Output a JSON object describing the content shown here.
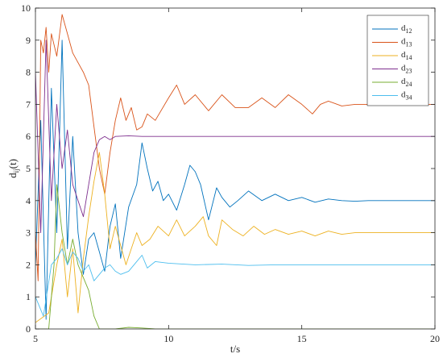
{
  "chart_data": {
    "type": "line",
    "title": "",
    "xlabel": "t/s",
    "ylabel": {
      "main": "d",
      "sub": "ij",
      "suffix": "(t)"
    },
    "xlim": [
      5,
      20
    ],
    "ylim": [
      0,
      10
    ],
    "xticks": [
      "5",
      "10",
      "15",
      "20"
    ],
    "yticks": [
      "0",
      "1",
      "2",
      "3",
      "4",
      "5",
      "6",
      "7",
      "8",
      "9",
      "10"
    ],
    "grid": false,
    "legend_position": "top-right",
    "series": [
      {
        "name": "d",
        "sub": "12",
        "color": "#0072BD",
        "points": [
          [
            5.0,
            2.0
          ],
          [
            5.2,
            6.5
          ],
          [
            5.4,
            0.3
          ],
          [
            5.6,
            7.5
          ],
          [
            5.8,
            3.0
          ],
          [
            6.0,
            9.0
          ],
          [
            6.2,
            2.5
          ],
          [
            6.4,
            6.0
          ],
          [
            6.6,
            3.0
          ],
          [
            6.8,
            1.7
          ],
          [
            7.0,
            2.8
          ],
          [
            7.2,
            3.0
          ],
          [
            7.4,
            2.4
          ],
          [
            7.6,
            1.8
          ],
          [
            7.8,
            3.2
          ],
          [
            8.0,
            3.9
          ],
          [
            8.2,
            2.2
          ],
          [
            8.5,
            3.8
          ],
          [
            8.8,
            4.5
          ],
          [
            9.0,
            5.8
          ],
          [
            9.2,
            5.0
          ],
          [
            9.4,
            4.3
          ],
          [
            9.6,
            4.6
          ],
          [
            9.8,
            4.0
          ],
          [
            10.0,
            4.2
          ],
          [
            10.3,
            3.7
          ],
          [
            10.6,
            4.5
          ],
          [
            10.8,
            5.1
          ],
          [
            11.0,
            4.9
          ],
          [
            11.2,
            4.5
          ],
          [
            11.5,
            3.4
          ],
          [
            11.8,
            4.4
          ],
          [
            12.0,
            4.1
          ],
          [
            12.3,
            3.8
          ],
          [
            12.6,
            4.0
          ],
          [
            13.0,
            4.3
          ],
          [
            13.5,
            4.0
          ],
          [
            14.0,
            4.2
          ],
          [
            14.5,
            4.0
          ],
          [
            15.0,
            4.1
          ],
          [
            15.5,
            3.95
          ],
          [
            16.0,
            4.05
          ],
          [
            16.5,
            4.0
          ],
          [
            17.0,
            3.98
          ],
          [
            17.5,
            4.0
          ],
          [
            18.0,
            4.0
          ],
          [
            19.0,
            4.0
          ],
          [
            20.0,
            4.0
          ]
        ]
      },
      {
        "name": "d",
        "sub": "13",
        "color": "#D95319",
        "points": [
          [
            5.0,
            3.0
          ],
          [
            5.1,
            1.5
          ],
          [
            5.2,
            9.0
          ],
          [
            5.3,
            8.6
          ],
          [
            5.4,
            9.4
          ],
          [
            5.5,
            8.0
          ],
          [
            5.6,
            9.2
          ],
          [
            5.8,
            8.5
          ],
          [
            6.0,
            9.8
          ],
          [
            6.2,
            9.2
          ],
          [
            6.4,
            8.6
          ],
          [
            6.6,
            8.3
          ],
          [
            6.8,
            8.0
          ],
          [
            7.0,
            7.6
          ],
          [
            7.2,
            6.3
          ],
          [
            7.4,
            5.0
          ],
          [
            7.6,
            4.2
          ],
          [
            7.8,
            5.5
          ],
          [
            8.0,
            6.5
          ],
          [
            8.2,
            7.2
          ],
          [
            8.4,
            6.5
          ],
          [
            8.6,
            6.9
          ],
          [
            8.8,
            6.2
          ],
          [
            9.0,
            6.3
          ],
          [
            9.2,
            6.7
          ],
          [
            9.5,
            6.5
          ],
          [
            10.0,
            7.2
          ],
          [
            10.3,
            7.6
          ],
          [
            10.6,
            7.0
          ],
          [
            11.0,
            7.3
          ],
          [
            11.5,
            6.8
          ],
          [
            12.0,
            7.3
          ],
          [
            12.5,
            6.9
          ],
          [
            13.0,
            6.9
          ],
          [
            13.5,
            7.2
          ],
          [
            14.0,
            6.9
          ],
          [
            14.5,
            7.3
          ],
          [
            15.0,
            7.0
          ],
          [
            15.4,
            6.7
          ],
          [
            15.7,
            7.0
          ],
          [
            16.0,
            7.1
          ],
          [
            16.5,
            6.95
          ],
          [
            17.0,
            7.0
          ],
          [
            17.5,
            7.0
          ],
          [
            18.0,
            7.0
          ],
          [
            19.0,
            7.0
          ],
          [
            20.0,
            7.0
          ]
        ]
      },
      {
        "name": "d",
        "sub": "14",
        "color": "#EDB120",
        "points": [
          [
            5.0,
            0.2
          ],
          [
            5.5,
            0.5
          ],
          [
            5.8,
            2.0
          ],
          [
            6.0,
            2.8
          ],
          [
            6.2,
            1.0
          ],
          [
            6.4,
            2.5
          ],
          [
            6.6,
            0.5
          ],
          [
            6.8,
            2.2
          ],
          [
            7.0,
            3.5
          ],
          [
            7.2,
            4.6
          ],
          [
            7.4,
            5.5
          ],
          [
            7.6,
            4.2
          ],
          [
            7.8,
            2.5
          ],
          [
            8.0,
            3.2
          ],
          [
            8.2,
            2.6
          ],
          [
            8.4,
            2.0
          ],
          [
            8.6,
            2.5
          ],
          [
            8.8,
            3.0
          ],
          [
            9.0,
            2.6
          ],
          [
            9.3,
            2.8
          ],
          [
            9.6,
            3.2
          ],
          [
            10.0,
            2.9
          ],
          [
            10.3,
            3.4
          ],
          [
            10.6,
            2.9
          ],
          [
            11.0,
            3.2
          ],
          [
            11.3,
            3.5
          ],
          [
            11.5,
            2.9
          ],
          [
            11.8,
            2.6
          ],
          [
            12.0,
            3.4
          ],
          [
            12.4,
            3.1
          ],
          [
            12.8,
            2.9
          ],
          [
            13.2,
            3.2
          ],
          [
            13.6,
            2.95
          ],
          [
            14.0,
            3.1
          ],
          [
            14.5,
            2.95
          ],
          [
            15.0,
            3.05
          ],
          [
            15.5,
            2.9
          ],
          [
            16.0,
            3.05
          ],
          [
            16.5,
            2.95
          ],
          [
            17.0,
            3.0
          ],
          [
            17.5,
            3.0
          ],
          [
            18.0,
            3.0
          ],
          [
            19.0,
            3.0
          ],
          [
            20.0,
            3.0
          ]
        ]
      },
      {
        "name": "d",
        "sub": "23",
        "color": "#7E2F8E",
        "points": [
          [
            5.0,
            8.0
          ],
          [
            5.2,
            3.0
          ],
          [
            5.4,
            9.0
          ],
          [
            5.6,
            4.0
          ],
          [
            5.8,
            7.0
          ],
          [
            6.0,
            5.0
          ],
          [
            6.2,
            6.2
          ],
          [
            6.4,
            4.5
          ],
          [
            6.6,
            4.0
          ],
          [
            6.8,
            3.5
          ],
          [
            7.0,
            4.5
          ],
          [
            7.2,
            5.5
          ],
          [
            7.4,
            5.9
          ],
          [
            7.6,
            6.0
          ],
          [
            7.8,
            5.9
          ],
          [
            8.0,
            6.0
          ],
          [
            8.5,
            6.02
          ],
          [
            9.0,
            6.0
          ],
          [
            10.0,
            6.0
          ],
          [
            12.0,
            6.0
          ],
          [
            15.0,
            6.0
          ],
          [
            20.0,
            6.0
          ]
        ]
      },
      {
        "name": "d",
        "sub": "24",
        "color": "#77AC30",
        "points": [
          [
            5.0,
            0.0
          ],
          [
            5.5,
            0.0
          ],
          [
            5.7,
            2.0
          ],
          [
            5.8,
            4.5
          ],
          [
            6.0,
            3.0
          ],
          [
            6.2,
            2.0
          ],
          [
            6.4,
            2.8
          ],
          [
            6.6,
            2.0
          ],
          [
            6.8,
            1.6
          ],
          [
            7.0,
            1.2
          ],
          [
            7.2,
            0.4
          ],
          [
            7.4,
            0.0
          ],
          [
            8.0,
            0.0
          ],
          [
            8.5,
            0.05
          ],
          [
            9.0,
            0.03
          ],
          [
            9.5,
            0.0
          ],
          [
            20.0,
            0.0
          ]
        ]
      },
      {
        "name": "d",
        "sub": "34",
        "color": "#4DBEEE",
        "points": [
          [
            5.0,
            1.0
          ],
          [
            5.3,
            0.4
          ],
          [
            5.6,
            2.0
          ],
          [
            5.8,
            2.2
          ],
          [
            6.0,
            2.5
          ],
          [
            6.2,
            2.0
          ],
          [
            6.4,
            2.4
          ],
          [
            6.6,
            2.2
          ],
          [
            6.8,
            1.8
          ],
          [
            7.0,
            2.0
          ],
          [
            7.2,
            1.5
          ],
          [
            7.4,
            1.7
          ],
          [
            7.6,
            1.9
          ],
          [
            7.8,
            2.0
          ],
          [
            8.0,
            1.8
          ],
          [
            8.2,
            1.7
          ],
          [
            8.5,
            1.8
          ],
          [
            8.8,
            2.1
          ],
          [
            9.0,
            2.3
          ],
          [
            9.2,
            1.9
          ],
          [
            9.5,
            2.1
          ],
          [
            10.0,
            2.05
          ],
          [
            11.0,
            2.0
          ],
          [
            12.0,
            2.02
          ],
          [
            13.0,
            1.98
          ],
          [
            14.0,
            2.0
          ],
          [
            16.0,
            2.0
          ],
          [
            18.0,
            2.0
          ],
          [
            20.0,
            2.0
          ]
        ]
      }
    ]
  }
}
